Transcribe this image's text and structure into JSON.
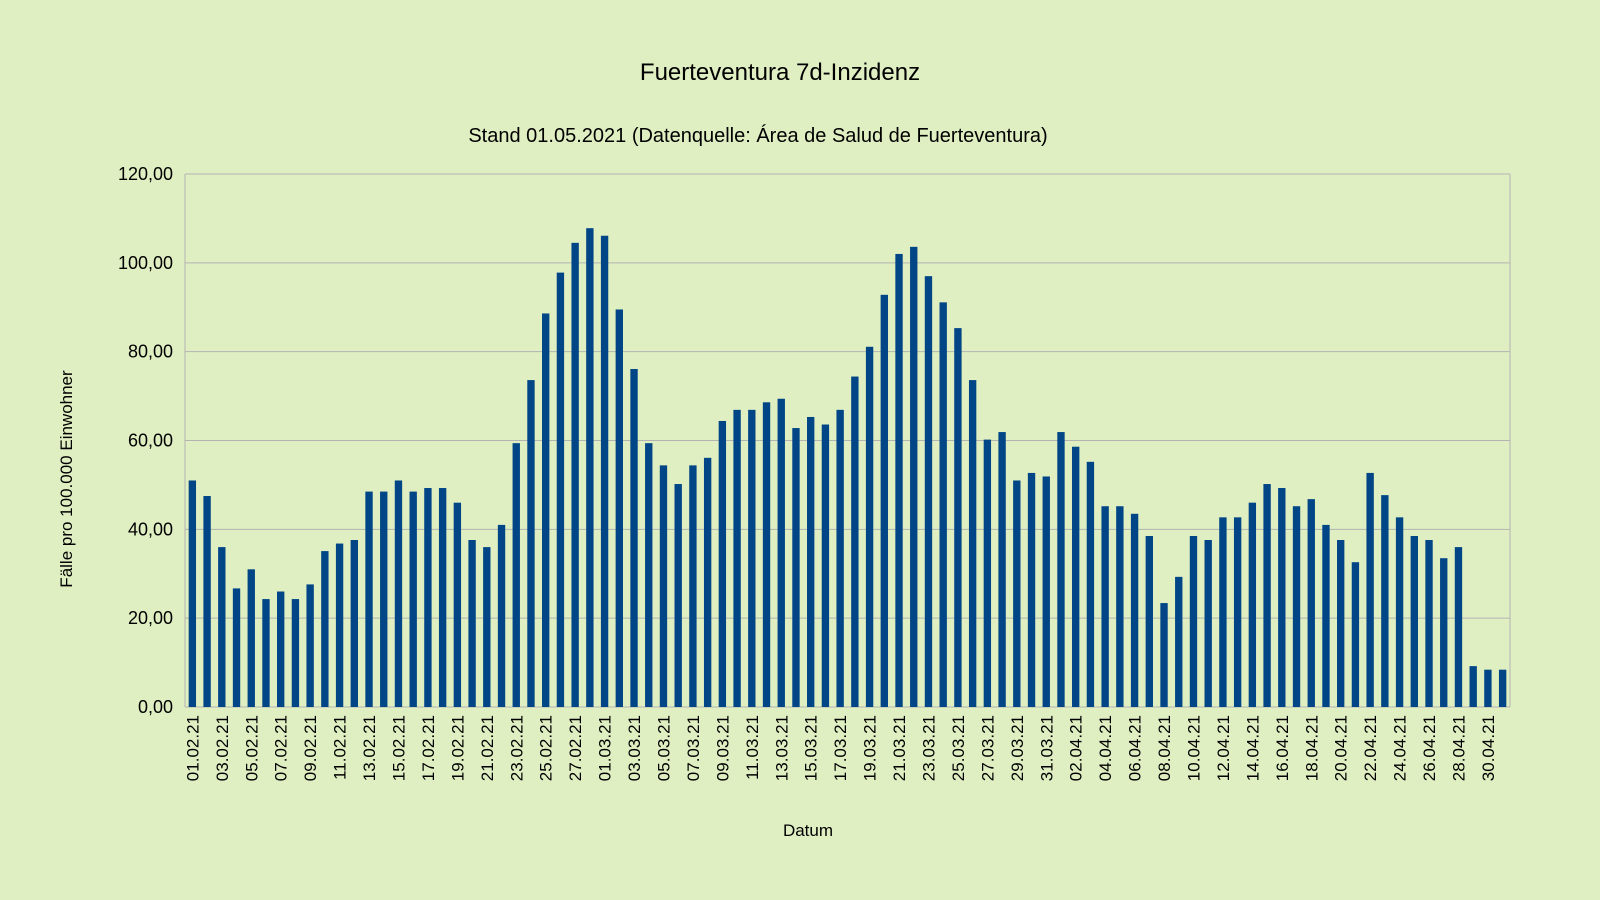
{
  "chart_data": {
    "type": "bar",
    "title": "Fuerteventura 7d-Inzidenz",
    "subtitle": "Stand 01.05.2021 (Datenquelle: Área de Salud de Fuerteventura)",
    "xlabel": "Datum",
    "ylabel": "Fälle pro 100.000 Einwohner",
    "ylim": [
      0,
      120
    ],
    "yticks": [
      0,
      20,
      40,
      60,
      80,
      100,
      120
    ],
    "ytick_labels": [
      "0,00",
      "20,00",
      "40,00",
      "60,00",
      "80,00",
      "100,00",
      "120,00"
    ],
    "grid": true,
    "legend": "none",
    "bar_color": "#004586",
    "grid_color": "#b3b3b3",
    "background_color": "#e0efc2",
    "xtick_labels": [
      "01.02.21",
      "03.02.21",
      "05.02.21",
      "07.02.21",
      "09.02.21",
      "11.02.21",
      "13.02.21",
      "15.02.21",
      "17.02.21",
      "19.02.21",
      "21.02.21",
      "23.02.21",
      "25.02.21",
      "27.02.21",
      "01.03.21",
      "03.03.21",
      "05.03.21",
      "07.03.21",
      "09.03.21",
      "11.03.21",
      "13.03.21",
      "15.03.21",
      "17.03.21",
      "19.03.21",
      "21.03.21",
      "23.03.21",
      "25.03.21",
      "27.03.21",
      "29.03.21",
      "31.03.21",
      "02.04.21",
      "04.04.21",
      "06.04.21",
      "08.04.21",
      "10.04.21",
      "12.04.21",
      "14.04.21",
      "16.04.21",
      "18.04.21",
      "20.04.21",
      "22.04.21",
      "24.04.21",
      "26.04.21",
      "28.04.21",
      "30.04.21"
    ],
    "categories": [
      "01.02.21",
      "02.02.21",
      "03.02.21",
      "04.02.21",
      "05.02.21",
      "06.02.21",
      "07.02.21",
      "08.02.21",
      "09.02.21",
      "10.02.21",
      "11.02.21",
      "12.02.21",
      "13.02.21",
      "14.02.21",
      "15.02.21",
      "16.02.21",
      "17.02.21",
      "18.02.21",
      "19.02.21",
      "20.02.21",
      "21.02.21",
      "22.02.21",
      "23.02.21",
      "24.02.21",
      "25.02.21",
      "26.02.21",
      "27.02.21",
      "28.02.21",
      "01.03.21",
      "02.03.21",
      "03.03.21",
      "04.03.21",
      "05.03.21",
      "06.03.21",
      "07.03.21",
      "08.03.21",
      "09.03.21",
      "10.03.21",
      "11.03.21",
      "12.03.21",
      "13.03.21",
      "14.03.21",
      "15.03.21",
      "16.03.21",
      "17.03.21",
      "18.03.21",
      "19.03.21",
      "20.03.21",
      "21.03.21",
      "22.03.21",
      "23.03.21",
      "24.03.21",
      "25.03.21",
      "26.03.21",
      "27.03.21",
      "28.03.21",
      "29.03.21",
      "30.03.21",
      "31.03.21",
      "01.04.21",
      "02.04.21",
      "03.04.21",
      "04.04.21",
      "05.04.21",
      "06.04.21",
      "07.04.21",
      "08.04.21",
      "09.04.21",
      "10.04.21",
      "11.04.21",
      "12.04.21",
      "13.04.21",
      "14.04.21",
      "15.04.21",
      "16.04.21",
      "17.04.21",
      "18.04.21",
      "19.04.21",
      "20.04.21",
      "21.04.21",
      "22.04.21",
      "23.04.21",
      "24.04.21",
      "25.04.21",
      "26.04.21",
      "27.04.21",
      "28.04.21",
      "29.04.21",
      "30.04.21",
      "01.05.21"
    ],
    "values": [
      51.0,
      47.5,
      36.0,
      26.7,
      31.0,
      24.3,
      26.0,
      24.3,
      27.6,
      35.1,
      36.8,
      37.6,
      48.5,
      48.5,
      51.0,
      48.5,
      49.3,
      49.3,
      46.0,
      37.6,
      36.0,
      41.0,
      59.4,
      73.6,
      88.6,
      97.8,
      104.5,
      107.8,
      106.1,
      89.5,
      76.1,
      59.4,
      54.4,
      50.2,
      54.4,
      56.1,
      64.4,
      66.9,
      66.9,
      68.6,
      69.4,
      62.8,
      65.3,
      63.6,
      66.9,
      74.4,
      81.1,
      92.8,
      102.0,
      103.6,
      97.0,
      91.1,
      85.3,
      73.6,
      60.2,
      61.9,
      51.0,
      52.7,
      51.9,
      61.9,
      58.6,
      55.2,
      45.2,
      45.2,
      43.5,
      38.5,
      23.4,
      29.3,
      38.5,
      37.6,
      42.7,
      42.7,
      46.0,
      50.2,
      49.3,
      45.2,
      46.8,
      41.0,
      37.6,
      32.6,
      52.7,
      47.7,
      42.7,
      38.5,
      37.6,
      33.5,
      36.0,
      9.2,
      8.4,
      8.4
    ]
  }
}
